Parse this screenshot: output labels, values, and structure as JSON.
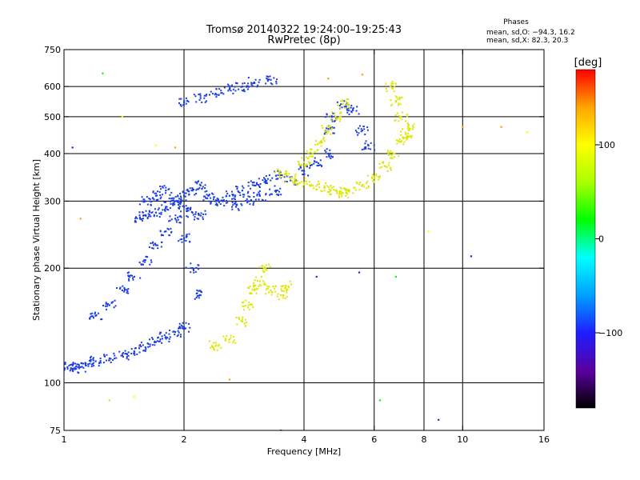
{
  "chart_data": {
    "type": "scatter",
    "title": "Tromsø 20140322 19:24:00–19:25:43",
    "subtitle": "RwPretec (8p)",
    "xlabel": "Frequency [MHz]",
    "ylabel": "Stationary phase Virtual Height [km]",
    "x_scale": "log",
    "y_scale": "log",
    "xlim": [
      1,
      16
    ],
    "ylim": [
      75,
      750
    ],
    "x_ticks": [
      1,
      2,
      4,
      6,
      8,
      10,
      16
    ],
    "x_tick_labels": [
      "1",
      "2",
      "4",
      "6",
      "8",
      "10",
      "16"
    ],
    "y_ticks": [
      75,
      100,
      200,
      300,
      400,
      500,
      600,
      750
    ],
    "y_tick_labels": [
      "75",
      "100",
      "200",
      "300",
      "400",
      "500",
      "600",
      "750"
    ],
    "x_gridlines": [
      2,
      4,
      6,
      8,
      10
    ],
    "y_gridlines": [
      100,
      200,
      300,
      400,
      500,
      600
    ],
    "grid": true,
    "legend": {
      "title": "Phases",
      "lines": [
        "mean, sd,O: −94.3, 16.2",
        "mean, sd,X:  82.3, 20.3"
      ],
      "placement": "top-right"
    },
    "colorbar": {
      "label": "[deg]",
      "range": [
        -180,
        180
      ],
      "ticks": [
        100,
        0,
        -100
      ],
      "tick_labels": [
        "100",
        "0",
        "−100"
      ],
      "colors": [
        "#000000",
        "#5a00a0",
        "#1e1eff",
        "#00a0ff",
        "#00ffff",
        "#00ff00",
        "#aaff00",
        "#ffff00",
        "#ffa500",
        "#ff0000"
      ]
    },
    "series": [
      {
        "mode": "O",
        "phase_deg": -94,
        "color": "#1a3ce6",
        "x": [
          1.02,
          1.05,
          1.1,
          1.15,
          1.2,
          1.3,
          1.4,
          1.5,
          1.6,
          1.7,
          1.8,
          1.9,
          2.0,
          1.2,
          1.3,
          1.4,
          1.5,
          1.6,
          1.7,
          1.8,
          1.9,
          2.0,
          2.1,
          2.2,
          1.55,
          1.6,
          1.7,
          1.8,
          1.9,
          2.0,
          2.1,
          2.2,
          2.3,
          2.5,
          2.7,
          2.9,
          3.1,
          3.4,
          3.7,
          4.0,
          4.3,
          4.6,
          1.6,
          1.7,
          1.8,
          1.9,
          2.0,
          2.1,
          2.2,
          2.0,
          2.2,
          2.4,
          2.6,
          2.8,
          3.0,
          3.3,
          2.4,
          2.6,
          2.8,
          3.0,
          3.2,
          3.4,
          4.6,
          4.7,
          5.0,
          5.3,
          5.6,
          5.8
        ],
        "y": [
          110,
          109,
          110,
          112,
          114,
          116,
          118,
          121,
          124,
          128,
          132,
          136,
          140,
          150,
          160,
          175,
          190,
          210,
          230,
          250,
          270,
          240,
          200,
          170,
          270,
          275,
          280,
          290,
          300,
          310,
          320,
          330,
          310,
          300,
          290,
          300,
          310,
          320,
          340,
          360,
          380,
          400,
          300,
          310,
          320,
          300,
          290,
          280,
          275,
          545,
          560,
          575,
          590,
          600,
          615,
          625,
          300,
          310,
          320,
          330,
          340,
          350,
          460,
          500,
          540,
          520,
          460,
          420
        ]
      },
      {
        "mode": "X",
        "phase_deg": 82,
        "color": "#dde600",
        "x": [
          2.4,
          2.6,
          2.8,
          2.9,
          3.0,
          3.1,
          3.2,
          3.3,
          3.5,
          3.6,
          3.5,
          3.7,
          3.9,
          4.2,
          4.5,
          4.8,
          5.0,
          5.2,
          5.6,
          6.0,
          6.4,
          6.7,
          7.0,
          7.3,
          4.0,
          4.2,
          4.4,
          4.6,
          4.8,
          5.0,
          6.6,
          6.8,
          7.0,
          7.2
        ],
        "y": [
          125,
          130,
          145,
          160,
          175,
          185,
          200,
          175,
          170,
          180,
          355,
          345,
          335,
          330,
          325,
          320,
          315,
          320,
          330,
          345,
          370,
          400,
          430,
          470,
          380,
          400,
          430,
          460,
          500,
          540,
          600,
          550,
          500,
          450
        ]
      }
    ],
    "sparse_points": [
      {
        "x": 1.25,
        "y": 650,
        "phase": 20
      },
      {
        "x": 1.4,
        "y": 500,
        "phase": 110
      },
      {
        "x": 1.5,
        "y": 92,
        "phase": 100
      },
      {
        "x": 1.3,
        "y": 90,
        "phase": 60
      },
      {
        "x": 1.05,
        "y": 415,
        "phase": -110
      },
      {
        "x": 1.1,
        "y": 270,
        "phase": 140
      },
      {
        "x": 2.6,
        "y": 102,
        "phase": 150
      },
      {
        "x": 3.5,
        "y": 75,
        "phase": -100
      },
      {
        "x": 4.6,
        "y": 630,
        "phase": 130
      },
      {
        "x": 5.6,
        "y": 645,
        "phase": 150
      },
      {
        "x": 6.2,
        "y": 90,
        "phase": 20
      },
      {
        "x": 8.7,
        "y": 80,
        "phase": -120
      },
      {
        "x": 10.0,
        "y": 470,
        "phase": 120
      },
      {
        "x": 10.5,
        "y": 215,
        "phase": -100
      },
      {
        "x": 12.5,
        "y": 470,
        "phase": 150
      },
      {
        "x": 14.5,
        "y": 455,
        "phase": 110
      },
      {
        "x": 8.2,
        "y": 250,
        "phase": 110
      },
      {
        "x": 6.8,
        "y": 190,
        "phase": 20
      },
      {
        "x": 5.5,
        "y": 195,
        "phase": -100
      },
      {
        "x": 4.3,
        "y": 190,
        "phase": -120
      },
      {
        "x": 1.7,
        "y": 420,
        "phase": 110
      },
      {
        "x": 1.9,
        "y": 415,
        "phase": 150
      }
    ]
  }
}
